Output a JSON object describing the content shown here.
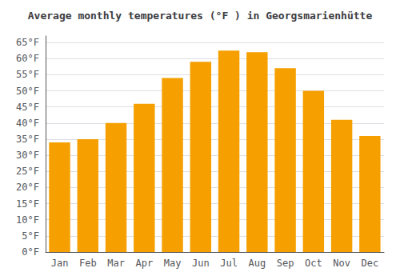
{
  "chart_data": {
    "type": "bar",
    "title": "Average monthly temperatures (°F ) in Georgsmarienhütte",
    "categories": [
      "Jan",
      "Feb",
      "Mar",
      "Apr",
      "May",
      "Jun",
      "Jul",
      "Aug",
      "Sep",
      "Oct",
      "Nov",
      "Dec"
    ],
    "values": [
      34,
      35,
      40,
      46,
      54,
      59,
      62.5,
      62,
      57,
      50,
      41,
      36
    ],
    "color": "#F5A000",
    "ylim": [
      0,
      67
    ],
    "yticks": [
      {
        "value": 0,
        "label": "0°F"
      },
      {
        "value": 5,
        "label": "5°F"
      },
      {
        "value": 10,
        "label": "10°F"
      },
      {
        "value": 15,
        "label": "15°F"
      },
      {
        "value": 20,
        "label": "20°F"
      },
      {
        "value": 25,
        "label": "25°F"
      },
      {
        "value": 30,
        "label": "30°F"
      },
      {
        "value": 35,
        "label": "35°F"
      },
      {
        "value": 40,
        "label": "40°F"
      },
      {
        "value": 45,
        "label": "45°F"
      },
      {
        "value": 50,
        "label": "50°F"
      },
      {
        "value": 55,
        "label": "55°F"
      },
      {
        "value": 60,
        "label": "60°F"
      },
      {
        "value": 65,
        "label": "65°F"
      }
    ],
    "grid": true
  }
}
